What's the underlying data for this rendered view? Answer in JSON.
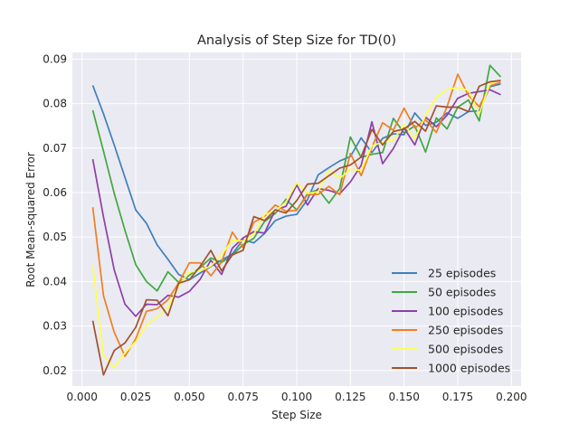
{
  "chart_data": {
    "type": "line",
    "title": "Analysis of Step Size for TD(0)",
    "xlabel": "Step Size",
    "ylabel": "Root Mean-squared Error",
    "xlim": [
      -0.0045,
      0.2045
    ],
    "ylim": [
      0.0165,
      0.0915
    ],
    "xticks": [
      0.0,
      0.025,
      0.05,
      0.075,
      0.1,
      0.125,
      0.15,
      0.175,
      0.2
    ],
    "xtick_labels": [
      "0.000",
      "0.025",
      "0.050",
      "0.075",
      "0.100",
      "0.125",
      "0.150",
      "0.175",
      "0.200"
    ],
    "yticks": [
      0.02,
      0.03,
      0.04,
      0.05,
      0.06,
      0.07,
      0.08,
      0.09
    ],
    "ytick_labels": [
      "0.02",
      "0.03",
      "0.04",
      "0.05",
      "0.06",
      "0.07",
      "0.08",
      "0.09"
    ],
    "grid": true,
    "background": "#eaeaf2",
    "legend_position": "lower-right",
    "x": [
      0.005,
      0.01,
      0.015,
      0.02,
      0.025,
      0.03,
      0.035,
      0.04,
      0.045,
      0.05,
      0.055,
      0.06,
      0.065,
      0.07,
      0.075,
      0.08,
      0.085,
      0.09,
      0.095,
      0.1,
      0.105,
      0.11,
      0.115,
      0.12,
      0.125,
      0.13,
      0.135,
      0.14,
      0.145,
      0.15,
      0.155,
      0.16,
      0.165,
      0.17,
      0.175,
      0.18,
      0.185,
      0.19,
      0.195
    ],
    "series": [
      {
        "name": "25 episodes",
        "color": "#3f7fbd",
        "values": [
          0.0841,
          0.0777,
          0.0707,
          0.0634,
          0.0561,
          0.0531,
          0.0482,
          0.045,
          0.0416,
          0.0404,
          0.0419,
          0.0434,
          0.0448,
          0.0462,
          0.0494,
          0.0487,
          0.0508,
          0.0537,
          0.0547,
          0.0551,
          0.0584,
          0.064,
          0.0656,
          0.0671,
          0.0681,
          0.0723,
          0.069,
          0.0722,
          0.0732,
          0.073,
          0.0779,
          0.0751,
          0.0758,
          0.0779,
          0.0767,
          0.0782,
          0.0784,
          0.0838,
          0.0844
        ]
      },
      {
        "name": "50 episodes",
        "color": "#3fa83f",
        "values": [
          0.0785,
          0.0693,
          0.0598,
          0.0515,
          0.0438,
          0.04,
          0.0379,
          0.0422,
          0.0398,
          0.0414,
          0.0431,
          0.0453,
          0.0443,
          0.0459,
          0.0483,
          0.0497,
          0.0535,
          0.0553,
          0.0585,
          0.0561,
          0.0597,
          0.0607,
          0.0576,
          0.0609,
          0.0725,
          0.0679,
          0.0686,
          0.069,
          0.0767,
          0.0734,
          0.075,
          0.0691,
          0.0768,
          0.0743,
          0.0792,
          0.0808,
          0.0761,
          0.0886,
          0.086
        ]
      },
      {
        "name": "100 episodes",
        "color": "#8c3fa8",
        "values": [
          0.0675,
          0.0545,
          0.0426,
          0.0349,
          0.0322,
          0.0349,
          0.0348,
          0.0369,
          0.0365,
          0.0378,
          0.0405,
          0.0448,
          0.0416,
          0.0475,
          0.0498,
          0.0512,
          0.0509,
          0.0561,
          0.0569,
          0.0617,
          0.0572,
          0.0609,
          0.0605,
          0.0597,
          0.0624,
          0.0661,
          0.0759,
          0.0665,
          0.0699,
          0.0745,
          0.0707,
          0.077,
          0.0748,
          0.0774,
          0.0812,
          0.0823,
          0.0827,
          0.0831,
          0.082
        ]
      },
      {
        "name": "250 episodes",
        "color": "#f07f1f",
        "values": [
          0.0567,
          0.0368,
          0.0286,
          0.0232,
          0.0271,
          0.0333,
          0.0339,
          0.0359,
          0.0397,
          0.0442,
          0.0442,
          0.0413,
          0.0444,
          0.0511,
          0.0476,
          0.0533,
          0.0547,
          0.0572,
          0.0558,
          0.056,
          0.0595,
          0.0596,
          0.0614,
          0.0595,
          0.0688,
          0.0638,
          0.0702,
          0.0757,
          0.074,
          0.079,
          0.0745,
          0.0764,
          0.0735,
          0.0793,
          0.0866,
          0.0818,
          0.0793,
          0.084,
          0.0848
        ]
      },
      {
        "name": "500 episodes",
        "color": "#ffff4d",
        "values": [
          0.0436,
          0.0233,
          0.0206,
          0.024,
          0.0265,
          0.0302,
          0.0321,
          0.0341,
          0.0391,
          0.0421,
          0.0424,
          0.0435,
          0.046,
          0.0493,
          0.0491,
          0.0506,
          0.0551,
          0.0558,
          0.0579,
          0.0622,
          0.0598,
          0.0602,
          0.065,
          0.0632,
          0.0652,
          0.065,
          0.0705,
          0.0713,
          0.0718,
          0.0753,
          0.0721,
          0.0773,
          0.0814,
          0.0832,
          0.0836,
          0.083,
          0.0777,
          0.0845,
          0.0854
        ]
      },
      {
        "name": "1000 episodes",
        "color": "#a0522d",
        "values": [
          0.0312,
          0.019,
          0.0245,
          0.0262,
          0.0297,
          0.0359,
          0.0358,
          0.0323,
          0.0396,
          0.0404,
          0.0434,
          0.047,
          0.0424,
          0.046,
          0.047,
          0.0546,
          0.0537,
          0.0561,
          0.0554,
          0.0582,
          0.0619,
          0.0621,
          0.0638,
          0.0655,
          0.0662,
          0.068,
          0.0742,
          0.0707,
          0.0737,
          0.0743,
          0.076,
          0.0738,
          0.0795,
          0.0792,
          0.0792,
          0.0782,
          0.0839,
          0.0849,
          0.0852
        ]
      }
    ]
  }
}
